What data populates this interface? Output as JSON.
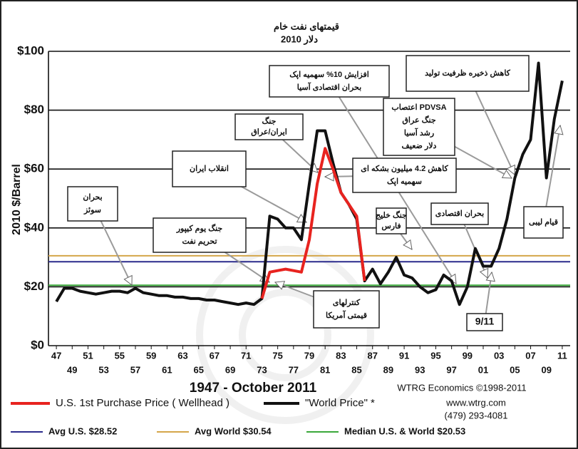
{
  "chart_data": {
    "type": "line",
    "title": "قیمتهای نفت خام",
    "subtitle": "دلار 2010",
    "ylabel": "2010 $/Barrel",
    "xlabel": "1947 - October 2011",
    "source": "WTRG Economics ©1998-2011",
    "website": "www.wtrg.com",
    "phone": "(479) 293-4081",
    "x": [
      1947,
      1948,
      1949,
      1950,
      1951,
      1952,
      1953,
      1954,
      1955,
      1956,
      1957,
      1958,
      1959,
      1960,
      1961,
      1962,
      1963,
      1964,
      1965,
      1966,
      1967,
      1968,
      1969,
      1970,
      1971,
      1972,
      1973,
      1974,
      1975,
      1976,
      1977,
      1978,
      1979,
      1980,
      1981,
      1982,
      1983,
      1984,
      1985,
      1986,
      1987,
      1988,
      1989,
      1990,
      1991,
      1992,
      1993,
      1994,
      1995,
      1996,
      1997,
      1998,
      1999,
      2000,
      2001,
      2002,
      2003,
      2004,
      2005,
      2006,
      2007,
      2008,
      2009,
      2010,
      2011
    ],
    "series": [
      {
        "name": "U.S. 1st Purchase Price ( Wellhead )",
        "color": "#e8231f",
        "values": [
          null,
          null,
          null,
          null,
          null,
          null,
          null,
          null,
          null,
          null,
          null,
          null,
          null,
          null,
          null,
          null,
          null,
          null,
          null,
          null,
          null,
          null,
          null,
          null,
          null,
          null,
          16,
          25,
          25.5,
          26,
          25.5,
          25,
          36,
          55,
          67,
          60,
          52,
          48,
          44,
          22,
          null,
          null,
          null,
          null,
          null,
          null,
          null,
          null,
          null,
          null,
          null,
          null,
          null,
          null,
          null,
          null,
          null,
          null,
          null,
          null,
          null,
          null,
          null,
          null,
          null
        ]
      },
      {
        "name": "\"World Price\" *",
        "color": "#111111",
        "values": [
          15,
          19.5,
          19.5,
          18.5,
          18,
          17.5,
          18,
          18.5,
          18.5,
          18,
          19.5,
          18,
          17.5,
          17,
          17,
          16.5,
          16.5,
          16,
          16,
          15.5,
          15.5,
          15,
          14.5,
          14,
          14.5,
          14,
          16,
          44,
          43,
          40,
          40,
          36,
          55,
          73,
          73,
          62,
          52,
          48,
          43,
          22,
          26,
          21,
          25,
          30,
          24,
          23,
          20,
          18,
          19,
          24,
          22,
          14,
          20,
          33,
          27,
          27,
          33,
          43,
          57,
          65,
          70,
          96,
          57,
          77,
          90
        ]
      }
    ],
    "reference_lines": [
      {
        "name": "Avg U.S. $28.52",
        "value": 28.52,
        "color": "#2b2b8c"
      },
      {
        "name": "Avg World $30.54",
        "value": 30.54,
        "color": "#d4a64a"
      },
      {
        "name": "Median U.S. & World $20.53",
        "value": 20.53,
        "color": "#3aa83a"
      }
    ],
    "xlim": [
      1946,
      2012
    ],
    "ylim": [
      0,
      100
    ],
    "yticks": [
      {
        "value": 0,
        "label": "$0"
      },
      {
        "value": 20,
        "label": "$20"
      },
      {
        "value": 40,
        "label": "$40"
      },
      {
        "value": 60,
        "label": "$60"
      },
      {
        "value": 80,
        "label": "$80"
      },
      {
        "value": 100,
        "label": "$100"
      }
    ],
    "xticks": [
      {
        "value": 1947,
        "label": "47"
      },
      {
        "value": 1949,
        "label": "49"
      },
      {
        "value": 1951,
        "label": "51"
      },
      {
        "value": 1953,
        "label": "53"
      },
      {
        "value": 1955,
        "label": "55"
      },
      {
        "value": 1957,
        "label": "57"
      },
      {
        "value": 1959,
        "label": "59"
      },
      {
        "value": 1961,
        "label": "61"
      },
      {
        "value": 1963,
        "label": "63"
      },
      {
        "value": 1965,
        "label": "65"
      },
      {
        "value": 1967,
        "label": "67"
      },
      {
        "value": 1969,
        "label": "69"
      },
      {
        "value": 1971,
        "label": "71"
      },
      {
        "value": 1973,
        "label": "73"
      },
      {
        "value": 1975,
        "label": "75"
      },
      {
        "value": 1977,
        "label": "77"
      },
      {
        "value": 1979,
        "label": "79"
      },
      {
        "value": 1981,
        "label": "81"
      },
      {
        "value": 1983,
        "label": "83"
      },
      {
        "value": 1985,
        "label": "85"
      },
      {
        "value": 1987,
        "label": "87"
      },
      {
        "value": 1989,
        "label": "89"
      },
      {
        "value": 1991,
        "label": "91"
      },
      {
        "value": 1993,
        "label": "93"
      },
      {
        "value": 1995,
        "label": "95"
      },
      {
        "value": 1997,
        "label": "97"
      },
      {
        "value": 1999,
        "label": "99"
      },
      {
        "value": 2001,
        "label": "01"
      },
      {
        "value": 2003,
        "label": "03"
      },
      {
        "value": 2005,
        "label": "05"
      },
      {
        "value": 2007,
        "label": "07"
      },
      {
        "value": 2009,
        "label": "09"
      },
      {
        "value": 2011,
        "label": "11"
      }
    ],
    "grid": true,
    "annotations": [
      {
        "lines": [
          "بحران",
          "سوئز"
        ]
      },
      {
        "lines": [
          "جنگ یوم کیپور",
          "تحریم نفت"
        ]
      },
      {
        "lines": [
          "انقلاب ایران"
        ]
      },
      {
        "lines": [
          "جنگ",
          "ایران/عراق"
        ]
      },
      {
        "lines": [
          "افزایش 10% سهمیه اپک",
          "بحران اقتصادی آسیا"
        ]
      },
      {
        "lines": [
          "کنترلهای",
          "قیمتی آمریکا"
        ]
      },
      {
        "lines": [
          "کاهش 4.2 میلیون بشکه ای",
          "سهمیه اپک"
        ]
      },
      {
        "lines": [
          "جنگ خلیج",
          "فارس"
        ]
      },
      {
        "lines": [
          "اعتصاب PDVSA",
          "جنگ عراق",
          "رشد آسیا",
          "دلار ضعیف"
        ]
      },
      {
        "lines": [
          "کاهش ذخیره ظرفیت تولید"
        ]
      },
      {
        "lines": [
          "بحران اقتصادی"
        ]
      },
      {
        "lines": [
          "قیام لیبی"
        ]
      },
      {
        "lines": [
          "9/11"
        ]
      }
    ]
  }
}
